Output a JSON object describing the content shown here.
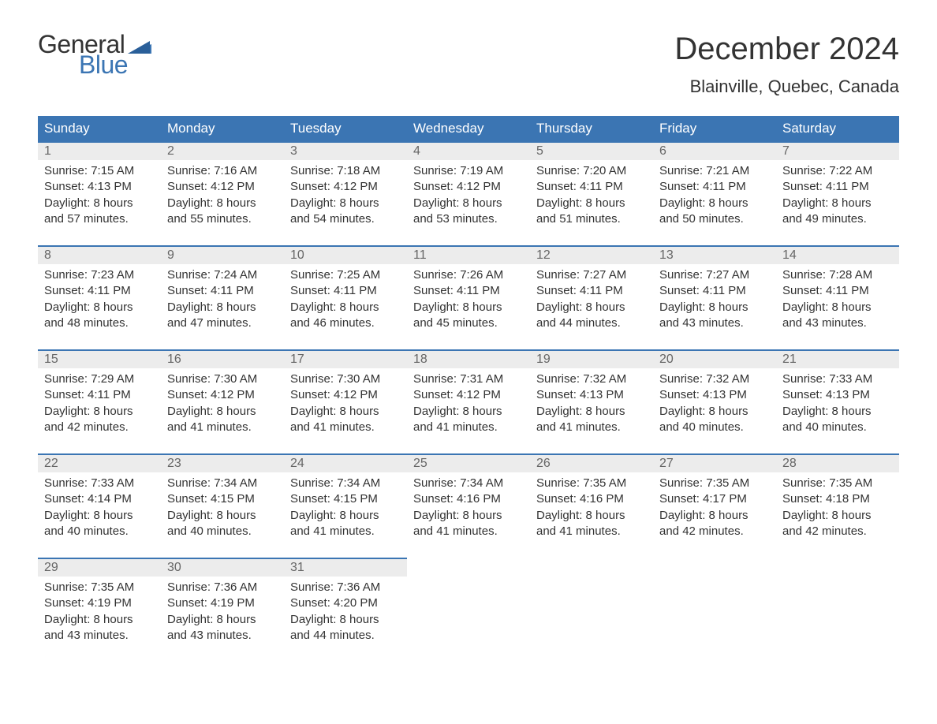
{
  "brand": {
    "word1": "General",
    "word2": "Blue",
    "color1": "#333333",
    "color2": "#3b75b3"
  },
  "title": "December 2024",
  "location": "Blainville, Quebec, Canada",
  "colors": {
    "header_bg": "#3b75b3",
    "header_text": "#ffffff",
    "daynum_bg": "#ececec",
    "daynum_text": "#666666",
    "body_text": "#333333",
    "row_border": "#3b75b3",
    "page_bg": "#ffffff"
  },
  "fonts": {
    "title_size": 40,
    "location_size": 22,
    "header_size": 17,
    "daynum_size": 16,
    "data_size": 15
  },
  "weekdays": [
    "Sunday",
    "Monday",
    "Tuesday",
    "Wednesday",
    "Thursday",
    "Friday",
    "Saturday"
  ],
  "weeks": [
    [
      {
        "day": "1",
        "sunrise": "Sunrise: 7:15 AM",
        "sunset": "Sunset: 4:13 PM",
        "dl1": "Daylight: 8 hours",
        "dl2": "and 57 minutes."
      },
      {
        "day": "2",
        "sunrise": "Sunrise: 7:16 AM",
        "sunset": "Sunset: 4:12 PM",
        "dl1": "Daylight: 8 hours",
        "dl2": "and 55 minutes."
      },
      {
        "day": "3",
        "sunrise": "Sunrise: 7:18 AM",
        "sunset": "Sunset: 4:12 PM",
        "dl1": "Daylight: 8 hours",
        "dl2": "and 54 minutes."
      },
      {
        "day": "4",
        "sunrise": "Sunrise: 7:19 AM",
        "sunset": "Sunset: 4:12 PM",
        "dl1": "Daylight: 8 hours",
        "dl2": "and 53 minutes."
      },
      {
        "day": "5",
        "sunrise": "Sunrise: 7:20 AM",
        "sunset": "Sunset: 4:11 PM",
        "dl1": "Daylight: 8 hours",
        "dl2": "and 51 minutes."
      },
      {
        "day": "6",
        "sunrise": "Sunrise: 7:21 AM",
        "sunset": "Sunset: 4:11 PM",
        "dl1": "Daylight: 8 hours",
        "dl2": "and 50 minutes."
      },
      {
        "day": "7",
        "sunrise": "Sunrise: 7:22 AM",
        "sunset": "Sunset: 4:11 PM",
        "dl1": "Daylight: 8 hours",
        "dl2": "and 49 minutes."
      }
    ],
    [
      {
        "day": "8",
        "sunrise": "Sunrise: 7:23 AM",
        "sunset": "Sunset: 4:11 PM",
        "dl1": "Daylight: 8 hours",
        "dl2": "and 48 minutes."
      },
      {
        "day": "9",
        "sunrise": "Sunrise: 7:24 AM",
        "sunset": "Sunset: 4:11 PM",
        "dl1": "Daylight: 8 hours",
        "dl2": "and 47 minutes."
      },
      {
        "day": "10",
        "sunrise": "Sunrise: 7:25 AM",
        "sunset": "Sunset: 4:11 PM",
        "dl1": "Daylight: 8 hours",
        "dl2": "and 46 minutes."
      },
      {
        "day": "11",
        "sunrise": "Sunrise: 7:26 AM",
        "sunset": "Sunset: 4:11 PM",
        "dl1": "Daylight: 8 hours",
        "dl2": "and 45 minutes."
      },
      {
        "day": "12",
        "sunrise": "Sunrise: 7:27 AM",
        "sunset": "Sunset: 4:11 PM",
        "dl1": "Daylight: 8 hours",
        "dl2": "and 44 minutes."
      },
      {
        "day": "13",
        "sunrise": "Sunrise: 7:27 AM",
        "sunset": "Sunset: 4:11 PM",
        "dl1": "Daylight: 8 hours",
        "dl2": "and 43 minutes."
      },
      {
        "day": "14",
        "sunrise": "Sunrise: 7:28 AM",
        "sunset": "Sunset: 4:11 PM",
        "dl1": "Daylight: 8 hours",
        "dl2": "and 43 minutes."
      }
    ],
    [
      {
        "day": "15",
        "sunrise": "Sunrise: 7:29 AM",
        "sunset": "Sunset: 4:11 PM",
        "dl1": "Daylight: 8 hours",
        "dl2": "and 42 minutes."
      },
      {
        "day": "16",
        "sunrise": "Sunrise: 7:30 AM",
        "sunset": "Sunset: 4:12 PM",
        "dl1": "Daylight: 8 hours",
        "dl2": "and 41 minutes."
      },
      {
        "day": "17",
        "sunrise": "Sunrise: 7:30 AM",
        "sunset": "Sunset: 4:12 PM",
        "dl1": "Daylight: 8 hours",
        "dl2": "and 41 minutes."
      },
      {
        "day": "18",
        "sunrise": "Sunrise: 7:31 AM",
        "sunset": "Sunset: 4:12 PM",
        "dl1": "Daylight: 8 hours",
        "dl2": "and 41 minutes."
      },
      {
        "day": "19",
        "sunrise": "Sunrise: 7:32 AM",
        "sunset": "Sunset: 4:13 PM",
        "dl1": "Daylight: 8 hours",
        "dl2": "and 41 minutes."
      },
      {
        "day": "20",
        "sunrise": "Sunrise: 7:32 AM",
        "sunset": "Sunset: 4:13 PM",
        "dl1": "Daylight: 8 hours",
        "dl2": "and 40 minutes."
      },
      {
        "day": "21",
        "sunrise": "Sunrise: 7:33 AM",
        "sunset": "Sunset: 4:13 PM",
        "dl1": "Daylight: 8 hours",
        "dl2": "and 40 minutes."
      }
    ],
    [
      {
        "day": "22",
        "sunrise": "Sunrise: 7:33 AM",
        "sunset": "Sunset: 4:14 PM",
        "dl1": "Daylight: 8 hours",
        "dl2": "and 40 minutes."
      },
      {
        "day": "23",
        "sunrise": "Sunrise: 7:34 AM",
        "sunset": "Sunset: 4:15 PM",
        "dl1": "Daylight: 8 hours",
        "dl2": "and 40 minutes."
      },
      {
        "day": "24",
        "sunrise": "Sunrise: 7:34 AM",
        "sunset": "Sunset: 4:15 PM",
        "dl1": "Daylight: 8 hours",
        "dl2": "and 41 minutes."
      },
      {
        "day": "25",
        "sunrise": "Sunrise: 7:34 AM",
        "sunset": "Sunset: 4:16 PM",
        "dl1": "Daylight: 8 hours",
        "dl2": "and 41 minutes."
      },
      {
        "day": "26",
        "sunrise": "Sunrise: 7:35 AM",
        "sunset": "Sunset: 4:16 PM",
        "dl1": "Daylight: 8 hours",
        "dl2": "and 41 minutes."
      },
      {
        "day": "27",
        "sunrise": "Sunrise: 7:35 AM",
        "sunset": "Sunset: 4:17 PM",
        "dl1": "Daylight: 8 hours",
        "dl2": "and 42 minutes."
      },
      {
        "day": "28",
        "sunrise": "Sunrise: 7:35 AM",
        "sunset": "Sunset: 4:18 PM",
        "dl1": "Daylight: 8 hours",
        "dl2": "and 42 minutes."
      }
    ],
    [
      {
        "day": "29",
        "sunrise": "Sunrise: 7:35 AM",
        "sunset": "Sunset: 4:19 PM",
        "dl1": "Daylight: 8 hours",
        "dl2": "and 43 minutes."
      },
      {
        "day": "30",
        "sunrise": "Sunrise: 7:36 AM",
        "sunset": "Sunset: 4:19 PM",
        "dl1": "Daylight: 8 hours",
        "dl2": "and 43 minutes."
      },
      {
        "day": "31",
        "sunrise": "Sunrise: 7:36 AM",
        "sunset": "Sunset: 4:20 PM",
        "dl1": "Daylight: 8 hours",
        "dl2": "and 44 minutes."
      },
      null,
      null,
      null,
      null
    ]
  ]
}
